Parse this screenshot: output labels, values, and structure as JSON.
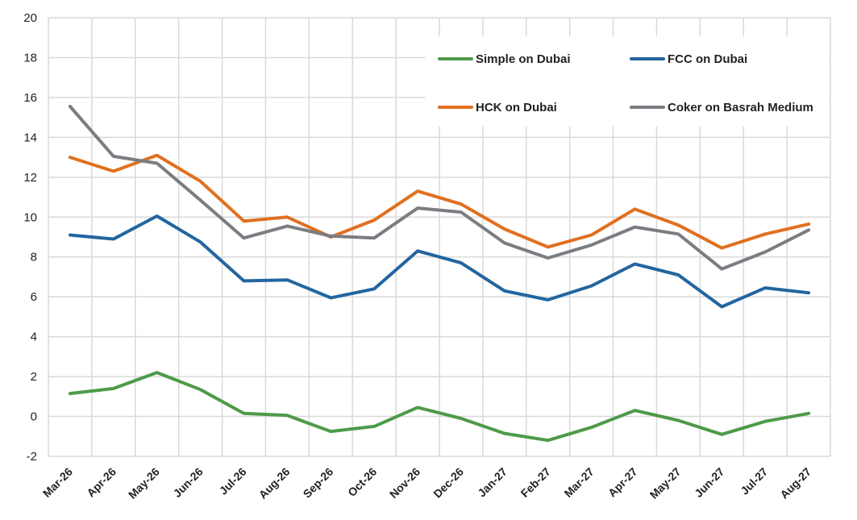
{
  "chart_data": {
    "type": "line",
    "title": "",
    "xlabel": "",
    "ylabel": "",
    "ylim": [
      -2,
      20
    ],
    "yticks": [
      "20",
      "18",
      "16",
      "14",
      "12",
      "10",
      "8",
      "6",
      "4",
      "2",
      "0",
      "-2"
    ],
    "grid": true,
    "legend_position": "top-right",
    "categories": [
      "Mar-26",
      "Apr-26",
      "May-26",
      "Jun-26",
      "Jul-26",
      "Aug-26",
      "Sep-26",
      "Oct-26",
      "Nov-26",
      "Dec-26",
      "Jan-27",
      "Feb-27",
      "Mar-27",
      "Apr-27",
      "May-27",
      "Jun-27",
      "Jul-27",
      "Aug-27"
    ],
    "series": [
      {
        "name": "Simple on Dubai",
        "color": "#4e9a4a",
        "values": [
          1.15,
          1.4,
          2.2,
          1.35,
          0.15,
          0.05,
          -0.75,
          -0.5,
          0.45,
          -0.1,
          -0.85,
          -1.2,
          -0.55,
          0.3,
          -0.2,
          -0.9,
          -0.25,
          0.15
        ]
      },
      {
        "name": "FCC on Dubai",
        "color": "#2266a0",
        "values": [
          9.1,
          8.9,
          10.05,
          8.75,
          6.8,
          6.85,
          5.95,
          6.4,
          8.3,
          7.7,
          6.3,
          5.85,
          6.55,
          7.65,
          7.1,
          5.5,
          6.45,
          6.2
        ]
      },
      {
        "name": "HCK on Dubai",
        "color": "#e07020",
        "values": [
          13.0,
          12.3,
          13.1,
          11.8,
          9.8,
          10.0,
          9.0,
          9.85,
          11.3,
          10.65,
          9.4,
          8.5,
          9.1,
          10.4,
          9.6,
          8.45,
          9.15,
          9.65
        ]
      },
      {
        "name": "Coker on Basrah Medium",
        "color": "#7a7d82",
        "values": [
          15.55,
          13.05,
          12.7,
          10.85,
          8.95,
          9.55,
          9.05,
          8.95,
          10.45,
          10.25,
          8.7,
          7.95,
          8.6,
          9.5,
          9.15,
          7.4,
          8.25,
          9.35
        ]
      }
    ]
  }
}
